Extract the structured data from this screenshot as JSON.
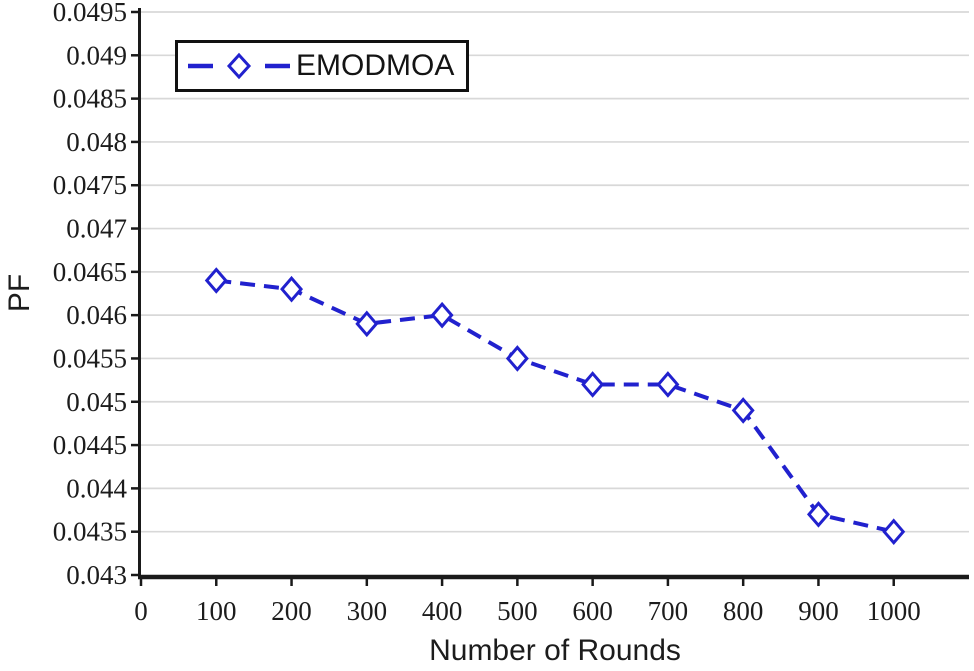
{
  "chart_data": {
    "type": "line",
    "title": "",
    "xlabel": "Number of Rounds",
    "ylabel": "PF",
    "x": [
      100,
      200,
      300,
      400,
      500,
      600,
      700,
      800,
      900,
      1000
    ],
    "series": [
      {
        "name": "EMODMOA",
        "values": [
          0.0464,
          0.0463,
          0.0459,
          0.046,
          0.0455,
          0.0452,
          0.0452,
          0.0449,
          0.0437,
          0.0435
        ],
        "line_style": "dashed",
        "marker": "open-diamond"
      }
    ],
    "xlim": [
      0,
      1100
    ],
    "ylim": [
      0.043,
      0.0495
    ],
    "x_ticks": [
      0,
      100,
      200,
      300,
      400,
      500,
      600,
      700,
      800,
      900,
      1000
    ],
    "x_tick_labels": [
      "0",
      "100",
      "200",
      "300",
      "400",
      "500",
      "600",
      "700",
      "800",
      "900",
      "1000"
    ],
    "y_ticks": [
      0.043,
      0.0435,
      0.044,
      0.0445,
      0.045,
      0.0455,
      0.046,
      0.0465,
      0.047,
      0.0475,
      0.048,
      0.0485,
      0.049,
      0.0495
    ],
    "y_tick_labels": [
      "0.043",
      "0.0435",
      "0.044",
      "0.0445",
      "0.045",
      "0.0455",
      "0.046",
      "0.0465",
      "0.047",
      "0.0475",
      "0.048",
      "0.0485",
      "0.049",
      "0.0495"
    ],
    "grid": "horizontal",
    "legend_position": "top-left",
    "colors": {
      "line": "#2121CE",
      "grid": "#D8D8D8",
      "axis": "#1A1A1A",
      "text": "#1C1C1C",
      "legend_border": "#111111",
      "background": "#FFFFFF"
    }
  }
}
